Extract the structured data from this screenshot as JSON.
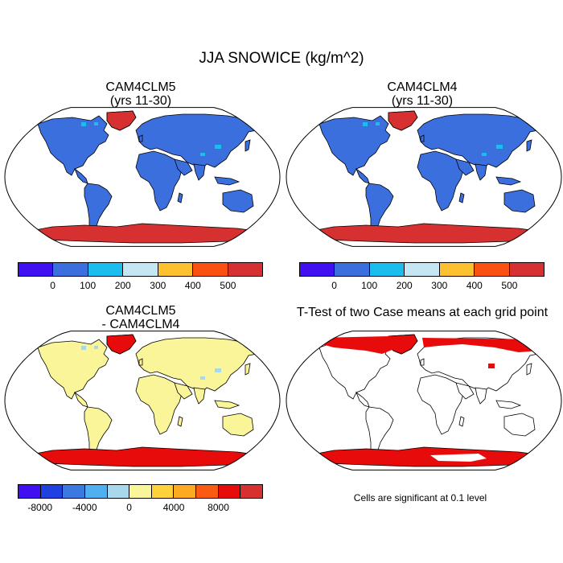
{
  "title": "JJA SNOWICE (kg/m^2)",
  "panels": [
    {
      "title_line1": "CAM4CLM5",
      "title_line2": "(yrs 11-30)",
      "land_color": "#3b6fde",
      "ice_color": "#d63031",
      "extra_colors": [
        "#1bbcee"
      ]
    },
    {
      "title_line1": "CAM4CLM4",
      "title_line2": "(yrs 11-30)",
      "land_color": "#3b6fde",
      "ice_color": "#d63031",
      "extra_colors": [
        "#1bbcee"
      ]
    },
    {
      "title_line1": "CAM4CLM5",
      "title_line2": "- CAM4CLM4",
      "land_color": "#fbf59a",
      "ice_color": "#e80b0b",
      "extra_colors": [
        "#a8d8ec"
      ]
    },
    {
      "title_line1": "T-Test of two Case means at each grid point",
      "title_line2": "",
      "land_color": "#ffffff",
      "ice_color": "#e80b0b",
      "extra_colors": []
    }
  ],
  "colorbar_abs": {
    "colors": [
      "#4010f0",
      "#3b6fde",
      "#1bbcee",
      "#c5e6f2",
      "#fdc02e",
      "#fa5011",
      "#d63031"
    ],
    "labels": [
      "0",
      "100",
      "200",
      "300",
      "400",
      "500"
    ]
  },
  "colorbar_diff": {
    "colors": [
      "#4010f0",
      "#2040e0",
      "#3b78e0",
      "#4fb0f0",
      "#a8d8ec",
      "#fbf59a",
      "#fdd23a",
      "#fbaa22",
      "#fa5a11",
      "#e80b0b",
      "#d63031"
    ],
    "labels": [
      "-8000",
      "-4000",
      "0",
      "4000",
      "8000"
    ]
  },
  "note": "Cells are significant at 0.1 level"
}
